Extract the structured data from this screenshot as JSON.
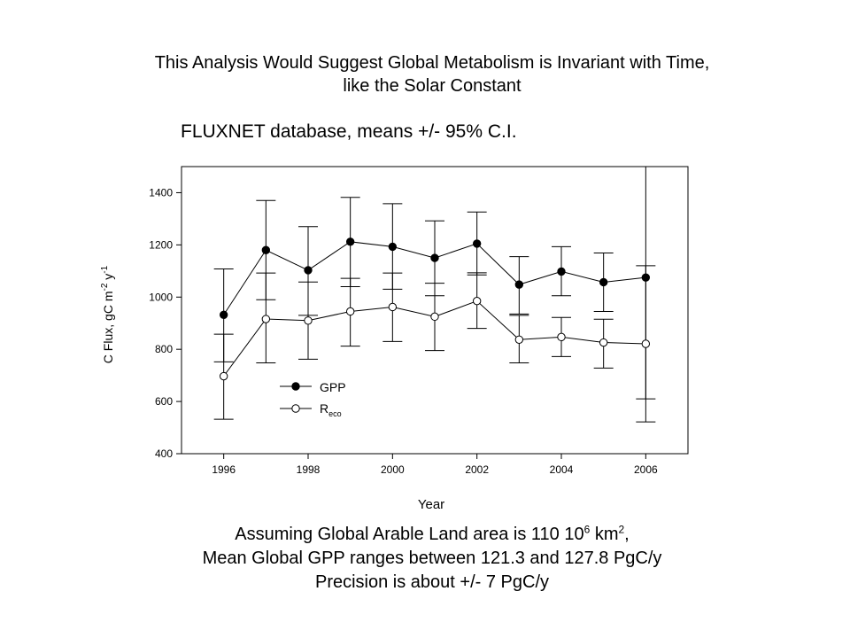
{
  "slide": {
    "title_line1": "This Analysis Would Suggest Global Metabolism is Invariant with Time,",
    "title_line2": "like the Solar Constant"
  },
  "chart_data": {
    "type": "line",
    "title": "FLUXNET database, means +/- 95% C.I.",
    "xlabel": "Year",
    "ylabel": "C Flux, gC m-2 y-1",
    "ylabel_main": "C Flux, gC m",
    "ylabel_sup1": "-2",
    "ylabel_mid": " y",
    "ylabel_sup2": "-1",
    "xlim": [
      1995,
      2007
    ],
    "ylim": [
      400,
      1500
    ],
    "x_ticks": [
      1996,
      1998,
      2000,
      2002,
      2004,
      2006
    ],
    "y_ticks": [
      400,
      600,
      800,
      1000,
      1200,
      1400
    ],
    "grid": false,
    "legend": "lower-left",
    "x": [
      1996,
      1997,
      1998,
      1999,
      2000,
      2001,
      2002,
      2003,
      2004,
      2005,
      2006
    ],
    "series": [
      {
        "name": "GPP",
        "marker": "filled-circle",
        "values": [
          932,
          1180,
          1103,
          1212,
          1193,
          1150,
          1205,
          1048,
          1098,
          1057,
          1075
        ],
        "lower": [
          752,
          990,
          930,
          1040,
          1030,
          1005,
          1085,
          935,
          1005,
          945,
          610
        ],
        "upper": [
          1108,
          1370,
          1270,
          1382,
          1358,
          1292,
          1326,
          1155,
          1193,
          1169,
          1500
        ]
      },
      {
        "name": "Reco",
        "name_main": "R",
        "name_sub": "eco",
        "marker": "open-circle",
        "values": [
          697,
          916,
          910,
          945,
          962,
          925,
          985,
          837,
          847,
          826,
          821
        ],
        "lower": [
          532,
          748,
          762,
          812,
          830,
          795,
          880,
          748,
          772,
          728,
          522
        ],
        "upper": [
          858,
          1092,
          1058,
          1072,
          1092,
          1053,
          1093,
          930,
          922,
          915,
          1120
        ]
      }
    ]
  },
  "bottom": {
    "line1_a": "Assuming Global Arable Land area is 110 10",
    "line1_sup1": "6",
    "line1_b": " km",
    "line1_sup2": "2",
    "line1_c": ",",
    "line2": "Mean Global GPP ranges between 121.3 and 127.8 PgC/y",
    "line3": "Precision is about +/- 7 PgC/y"
  }
}
